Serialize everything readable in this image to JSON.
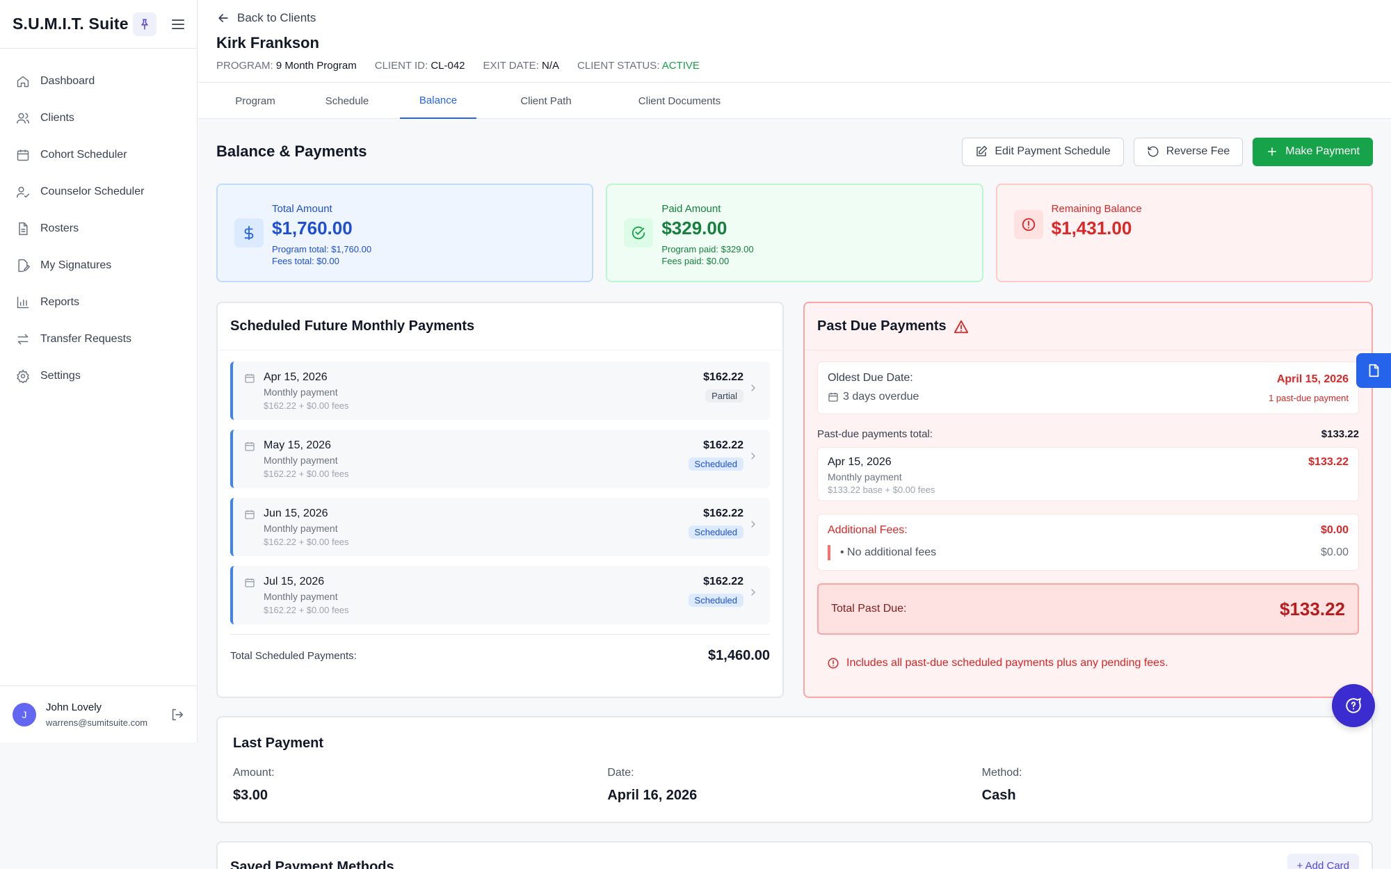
{
  "app": {
    "title": "S.U.M.I.T. Suite"
  },
  "sidebar": {
    "items": [
      {
        "label": "Dashboard",
        "icon": "home-icon"
      },
      {
        "label": "Clients",
        "icon": "users-icon"
      },
      {
        "label": "Cohort Scheduler",
        "icon": "calendar-icon"
      },
      {
        "label": "Counselor Scheduler",
        "icon": "user-check-icon"
      },
      {
        "label": "Rosters",
        "icon": "document-icon"
      },
      {
        "label": "My Signatures",
        "icon": "signature-icon"
      },
      {
        "label": "Reports",
        "icon": "bar-chart-icon"
      },
      {
        "label": "Transfer Requests",
        "icon": "transfer-icon"
      },
      {
        "label": "Settings",
        "icon": "gear-icon"
      }
    ]
  },
  "user": {
    "initial": "J",
    "name": "John Lovely",
    "email": "warrens@sumitsuite.com"
  },
  "header": {
    "back_label": "Back to Clients",
    "client_name": "Kirk Frankson",
    "meta": {
      "program_label": "PROGRAM:",
      "program": "9 Month Program",
      "id_label": "CLIENT ID:",
      "id": "CL-042",
      "exit_label": "EXIT DATE:",
      "exit": "N/A",
      "status_label": "CLIENT STATUS:",
      "status": "ACTIVE"
    }
  },
  "tabs": [
    "Program",
    "Schedule",
    "Balance",
    "Client Path",
    "Client Documents"
  ],
  "balance": {
    "title": "Balance & Payments",
    "actions": {
      "edit": "Edit Payment Schedule",
      "reverse": "Reverse Fee",
      "make": "Make Payment"
    },
    "total": {
      "label": "Total Amount",
      "amount": "$1,760.00",
      "sub1": "Program total: $1,760.00",
      "sub2": "Fees total: $0.00"
    },
    "paid": {
      "label": "Paid Amount",
      "amount": "$329.00",
      "sub1": "Program paid: $329.00",
      "sub2": "Fees paid: $0.00"
    },
    "remaining": {
      "label": "Remaining Balance",
      "amount": "$1,431.00"
    }
  },
  "scheduled": {
    "title": "Scheduled Future Monthly Payments",
    "items": [
      {
        "date": "Apr 15, 2026",
        "desc": "Monthly payment",
        "detail": "$162.22 + $0.00 fees",
        "amount": "$162.22",
        "status": "Partial"
      },
      {
        "date": "May 15, 2026",
        "desc": "Monthly payment",
        "detail": "$162.22 + $0.00 fees",
        "amount": "$162.22",
        "status": "Scheduled"
      },
      {
        "date": "Jun 15, 2026",
        "desc": "Monthly payment",
        "detail": "$162.22 + $0.00 fees",
        "amount": "$162.22",
        "status": "Scheduled"
      },
      {
        "date": "Jul 15, 2026",
        "desc": "Monthly payment",
        "detail": "$162.22 + $0.00 fees",
        "amount": "$162.22",
        "status": "Scheduled"
      }
    ],
    "total_label": "Total Scheduled Payments:",
    "total": "$1,460.00"
  },
  "pastdue": {
    "title": "Past Due Payments",
    "oldest_label": "Oldest Due Date:",
    "oldest_date": "April 15, 2026",
    "overdue": "3 days overdue",
    "count": "1 past-due payment",
    "total_label": "Past-due payments total:",
    "total": "$133.22",
    "item": {
      "date": "Apr 15, 2026",
      "desc": "Monthly payment",
      "detail": "$133.22 base + $0.00 fees",
      "amount": "$133.22"
    },
    "fees_label": "Additional Fees:",
    "fees_total": "$0.00",
    "fees_line": "• No additional fees",
    "fees_line_value": "$0.00",
    "grand_label": "Total Past Due:",
    "grand": "$133.22",
    "note": "Includes all past-due scheduled payments plus any pending fees."
  },
  "last_payment": {
    "title": "Last Payment",
    "amount_label": "Amount:",
    "amount": "$3.00",
    "date_label": "Date:",
    "date": "April 16, 2026",
    "method_label": "Method:",
    "method": "Cash"
  },
  "saved_methods": {
    "title": "Saved Payment Methods",
    "add_label": "+ Add Card"
  },
  "colors": {
    "primary": "#2563eb",
    "success": "#16a34a",
    "danger": "#dc2626",
    "chat": "#3b2ccf"
  }
}
